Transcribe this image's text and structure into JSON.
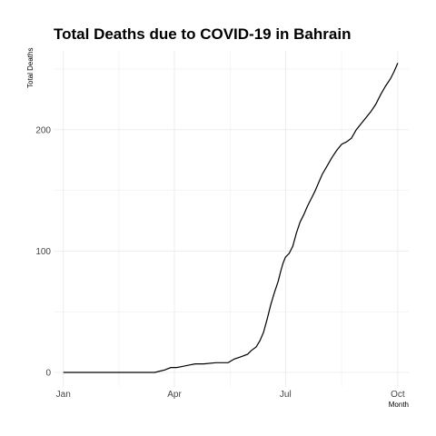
{
  "chart_data": {
    "type": "line",
    "title": "Total Deaths due to COVID-19 in Bahrain",
    "xlabel": "Month",
    "ylabel": "Total Deaths",
    "x_ticks": [
      {
        "label": "Jan",
        "date": "2020-01-01"
      },
      {
        "label": "Apr",
        "date": "2020-04-01"
      },
      {
        "label": "Jul",
        "date": "2020-07-01"
      },
      {
        "label": "Oct",
        "date": "2020-10-01"
      }
    ],
    "y_ticks": [
      0,
      100,
      200
    ],
    "xlim": [
      "2019-12-24",
      "2020-10-10"
    ],
    "ylim": [
      -12,
      265
    ],
    "grid": true,
    "colors": {
      "line": "#000000",
      "grid": "#ebebeb"
    },
    "series": [
      {
        "x": [
          "2020-01-01",
          "2020-02-20",
          "2020-02-24",
          "2020-03-16",
          "2020-03-20",
          "2020-03-24",
          "2020-03-29",
          "2020-04-03",
          "2020-04-08",
          "2020-04-13",
          "2020-04-18",
          "2020-04-25",
          "2020-05-05",
          "2020-05-15",
          "2020-05-20",
          "2020-05-26",
          "2020-05-31",
          "2020-06-03",
          "2020-06-07",
          "2020-06-10",
          "2020-06-13",
          "2020-06-16",
          "2020-06-19",
          "2020-06-22",
          "2020-06-25",
          "2020-06-27",
          "2020-06-29",
          "2020-07-01",
          "2020-07-04",
          "2020-07-07",
          "2020-07-10",
          "2020-07-13",
          "2020-07-16",
          "2020-07-19",
          "2020-07-22",
          "2020-07-25",
          "2020-07-28",
          "2020-07-31",
          "2020-08-04",
          "2020-08-08",
          "2020-08-12",
          "2020-08-16",
          "2020-08-20",
          "2020-08-24",
          "2020-08-28",
          "2020-09-01",
          "2020-09-05",
          "2020-09-09",
          "2020-09-13",
          "2020-09-17",
          "2020-09-21",
          "2020-09-25",
          "2020-09-28",
          "2020-10-01"
        ],
        "y": [
          0,
          0,
          0,
          0,
          1,
          2,
          4,
          4,
          5,
          6,
          7,
          7,
          8,
          8,
          11,
          13,
          15,
          18,
          21,
          26,
          33,
          44,
          56,
          66,
          75,
          83,
          90,
          95,
          98,
          104,
          115,
          124,
          130,
          137,
          143,
          149,
          156,
          163,
          170,
          177,
          183,
          188,
          190,
          193,
          200,
          205,
          210,
          215,
          221,
          229,
          236,
          242,
          248,
          255
        ]
      }
    ]
  }
}
